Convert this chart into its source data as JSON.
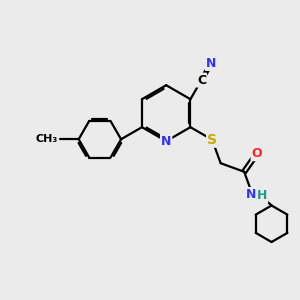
{
  "background_color": "#ebebeb",
  "atom_colors": {
    "C": "#000000",
    "N": "#3333ff",
    "O": "#ff2222",
    "S": "#ccaa00",
    "H": "#229988"
  },
  "bond_color": "#000000",
  "bond_width": 1.6,
  "figsize": [
    3.0,
    3.0
  ],
  "dpi": 100
}
